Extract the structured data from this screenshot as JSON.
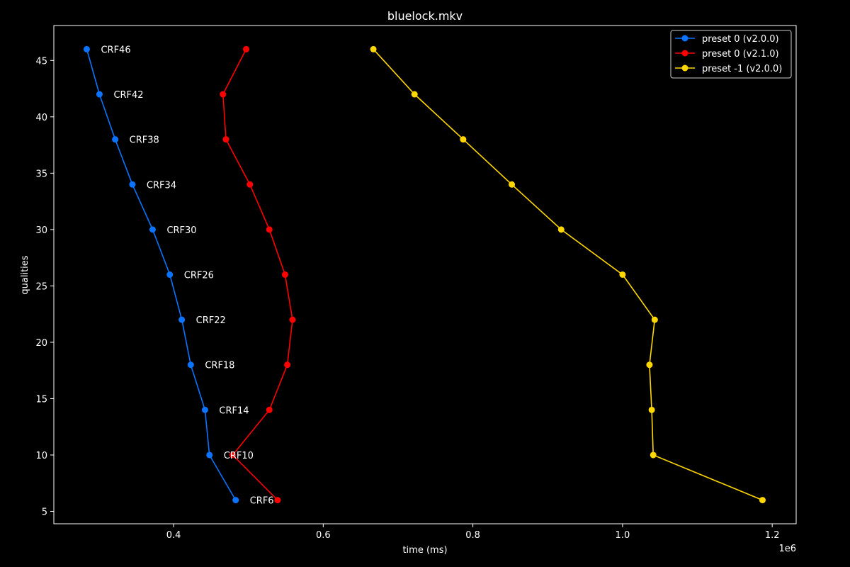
{
  "chart_data": {
    "type": "line",
    "title": "bluelock.mkv",
    "xlabel": "time (ms)",
    "ylabel": "qualities",
    "x_offset_label": "1e6",
    "xlim": [
      240000,
      1232000
    ],
    "ylim": [
      3.9,
      48.1
    ],
    "x_ticks": [
      400000,
      600000,
      800000,
      1000000,
      1200000
    ],
    "x_tick_labels": [
      "0.4",
      "0.6",
      "0.8",
      "1.0",
      "1.2"
    ],
    "y_ticks": [
      5,
      10,
      15,
      20,
      25,
      30,
      35,
      40,
      45
    ],
    "y_tick_labels": [
      "5",
      "10",
      "15",
      "20",
      "25",
      "30",
      "35",
      "40",
      "45"
    ],
    "grid": false,
    "legend_position": "top-right",
    "background": "#000000",
    "foreground": "#ffffff",
    "series": [
      {
        "name": "preset 0 (v2.0.0)",
        "color": "#0a74ff",
        "x": [
          284000,
          301000,
          322000,
          345000,
          372000,
          395000,
          411000,
          423000,
          442000,
          448000,
          483000
        ],
        "y": [
          46,
          42,
          38,
          34,
          30,
          26,
          22,
          18,
          14,
          10,
          6
        ]
      },
      {
        "name": "preset 0 (v2.1.0)",
        "color": "#ff0000",
        "x": [
          497000,
          466000,
          470000,
          502000,
          528000,
          549000,
          559000,
          552000,
          528000,
          479000,
          539000
        ],
        "y": [
          46,
          42,
          38,
          34,
          30,
          26,
          22,
          18,
          14,
          10,
          6
        ]
      },
      {
        "name": "preset -1 (v2.0.0)",
        "color": "#ffd700",
        "x": [
          667000,
          722000,
          787000,
          852000,
          918000,
          1000000,
          1043000,
          1036000,
          1039000,
          1041000,
          1187000
        ],
        "y": [
          46,
          42,
          38,
          34,
          30,
          26,
          22,
          18,
          14,
          10,
          6
        ]
      }
    ],
    "annotations": [
      {
        "text": "CRF46",
        "x": 284000,
        "y": 46
      },
      {
        "text": "CRF42",
        "x": 301000,
        "y": 42
      },
      {
        "text": "CRF38",
        "x": 322000,
        "y": 38
      },
      {
        "text": "CRF34",
        "x": 345000,
        "y": 34
      },
      {
        "text": "CRF30",
        "x": 372000,
        "y": 30
      },
      {
        "text": "CRF26",
        "x": 395000,
        "y": 26
      },
      {
        "text": "CRF22",
        "x": 411000,
        "y": 22
      },
      {
        "text": "CRF18",
        "x": 423000,
        "y": 18
      },
      {
        "text": "CRF14",
        "x": 442000,
        "y": 14
      },
      {
        "text": "CRF10",
        "x": 448000,
        "y": 10
      },
      {
        "text": "CRF6",
        "x": 483000,
        "y": 6
      }
    ]
  }
}
